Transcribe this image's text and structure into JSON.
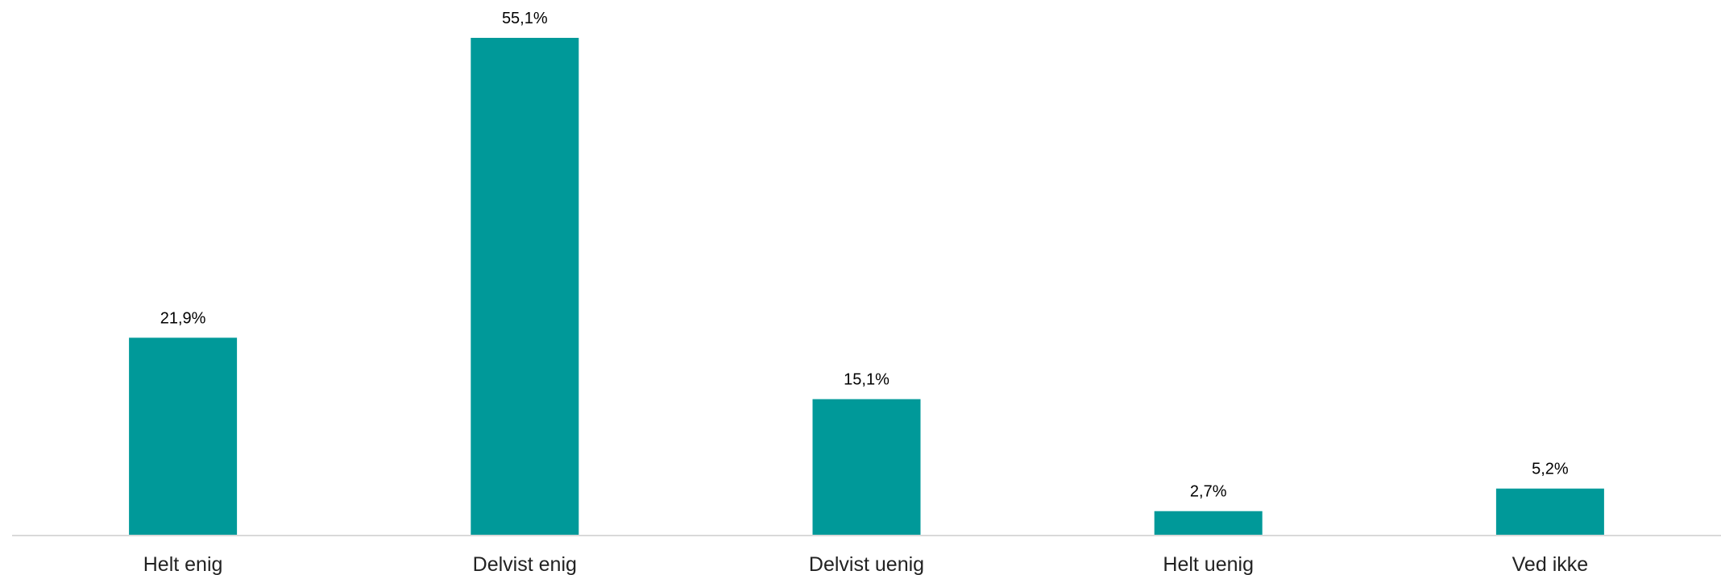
{
  "chart_data": {
    "type": "bar",
    "categories": [
      "Helt enig",
      "Delvist enig",
      "Delvist uenig",
      "Helt uenig",
      "Ved ikke"
    ],
    "values": [
      21.9,
      55.1,
      15.1,
      2.7,
      5.2
    ],
    "data_labels": [
      "21,9%",
      "55,1%",
      "15,1%",
      "2,7%",
      "5,2%"
    ],
    "bar_color": "#009999",
    "axis_color": "#d9d9d9",
    "grid": false,
    "legend": "none",
    "ylim": [
      0,
      55.1
    ]
  }
}
